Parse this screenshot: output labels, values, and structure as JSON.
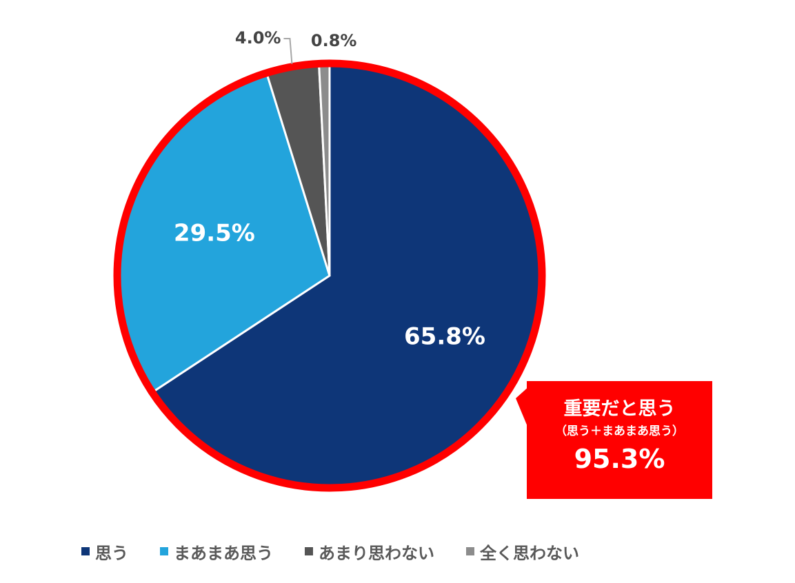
{
  "chart_data": {
    "type": "pie",
    "categories": [
      "思う",
      "まあまあ思う",
      "あまり思わない",
      "全く思わない"
    ],
    "values": [
      65.8,
      29.5,
      4.0,
      0.8
    ],
    "value_labels": [
      "65.8%",
      "29.5%",
      "4.0%",
      "0.8%"
    ],
    "colors": [
      "#0e3678",
      "#23a4dc",
      "#555555",
      "#8c8c8c"
    ],
    "highlight_ring_color": "#ff0000",
    "legend_position": "bottom",
    "start_angle": "top",
    "direction": "clockwise"
  },
  "callout": {
    "title": "重要だと思う",
    "subtitle": "（思う＋まあまあ思う）",
    "value": "95.3%"
  },
  "legend": {
    "items": [
      {
        "label": "思う",
        "color": "#0e3678"
      },
      {
        "label": "まあまあ思う",
        "color": "#23a4dc"
      },
      {
        "label": "あまり思わない",
        "color": "#555555"
      },
      {
        "label": "全く思わない",
        "color": "#8c8c8c"
      }
    ]
  }
}
